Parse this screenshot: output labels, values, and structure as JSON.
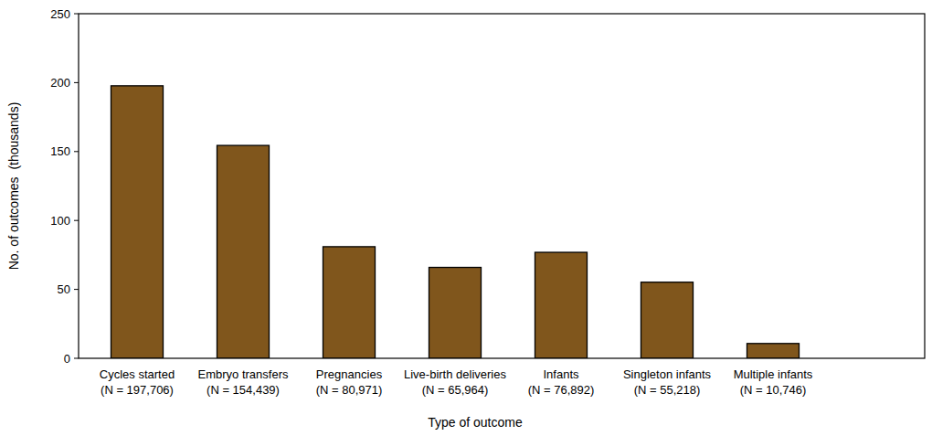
{
  "chart_data": {
    "type": "bar",
    "categories": [
      "Cycles started\n(N = 197,706)",
      "Embryo transfers\n(N = 154,439)",
      "Pregnancies\n(N = 80,971)",
      "Live-birth deliveries\n(N = 65,964)",
      "Infants\n(N = 76,892)",
      "Singleton infants\n(N = 55,218)",
      "Multiple infants\n(N = 10,746)"
    ],
    "values": [
      197.706,
      154.439,
      80.971,
      65.964,
      76.892,
      55.218,
      10.746
    ],
    "color": "#80561c",
    "xlabel": "Type of outcome",
    "ylabel": "No. of outcomes  (thousands)",
    "ylim": [
      0,
      250
    ],
    "yticks": [
      0,
      50,
      100,
      150,
      200,
      250
    ]
  }
}
